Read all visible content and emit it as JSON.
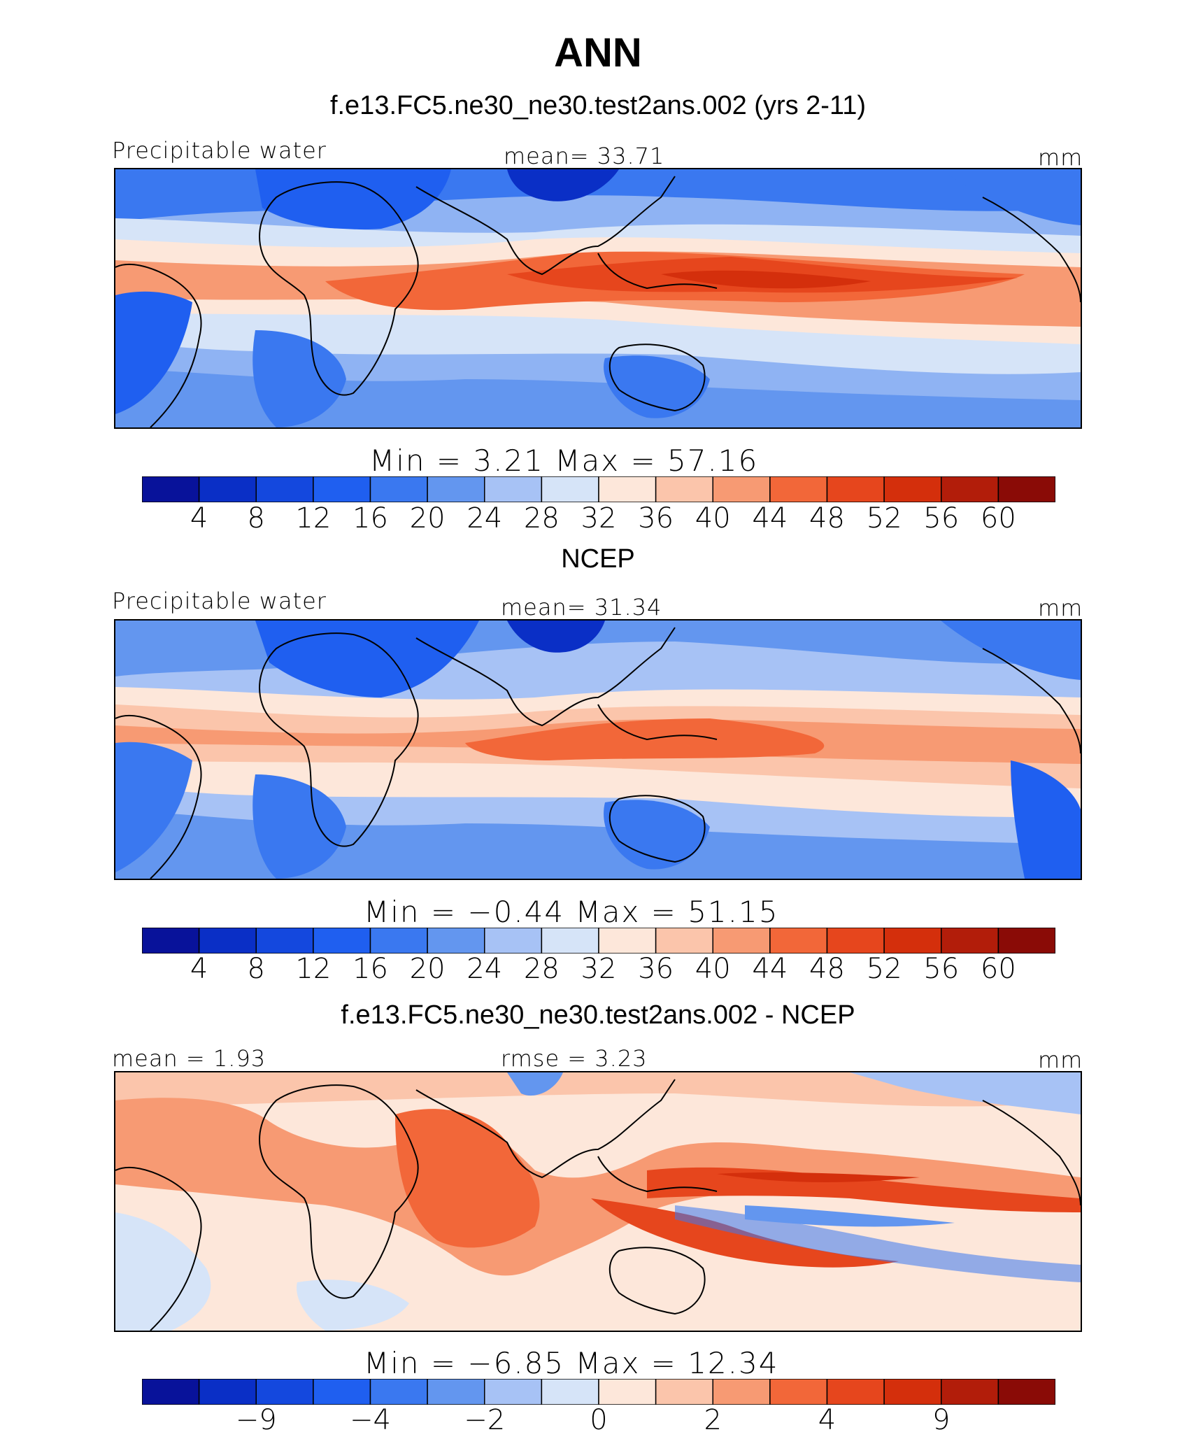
{
  "title": "ANN",
  "palette": [
    "#08129a",
    "#0a2fc6",
    "#1448de",
    "#1f5ff0",
    "#3a78f0",
    "#6396ef",
    "#a7c2f5",
    "#d6e4f8",
    "#fde7da",
    "#fbc5ab",
    "#f79a73",
    "#f26739",
    "#e6461d",
    "#d42f0c",
    "#b21d0a",
    "#8a0b06"
  ],
  "panels": [
    {
      "id": "model",
      "subtitle": "f.e13.FC5.ne30_ne30.test2ans.002 (yrs 2-11)",
      "left_label": "Precipitable water",
      "center_label": "mean=   33.71",
      "units": "mm",
      "minmax": "Min  =    3.21  Max  =   57.16",
      "ticks": [
        "4",
        "8",
        "12",
        "16",
        "20",
        "24",
        "28",
        "32",
        "36",
        "40",
        "44",
        "48",
        "52",
        "56",
        "60"
      ]
    },
    {
      "id": "obs",
      "subtitle": "NCEP",
      "left_label": "Precipitable water",
      "center_label": "mean=   31.34",
      "units": "mm",
      "minmax": "Min  =   −0.44  Max  =   51.15",
      "ticks": [
        "4",
        "8",
        "12",
        "16",
        "20",
        "24",
        "28",
        "32",
        "36",
        "40",
        "44",
        "48",
        "52",
        "56",
        "60"
      ]
    },
    {
      "id": "diff",
      "subtitle": "f.e13.FC5.ne30_ne30.test2ans.002 - NCEP",
      "left_label": "mean =    1.93",
      "center_label": "rmse =     3.23",
      "units": "mm",
      "minmax": "Min  =   −6.85  Max  =   12.34",
      "ticks": [
        "−9",
        "−4",
        "−2",
        "0",
        "2",
        "4",
        "9"
      ]
    }
  ]
}
